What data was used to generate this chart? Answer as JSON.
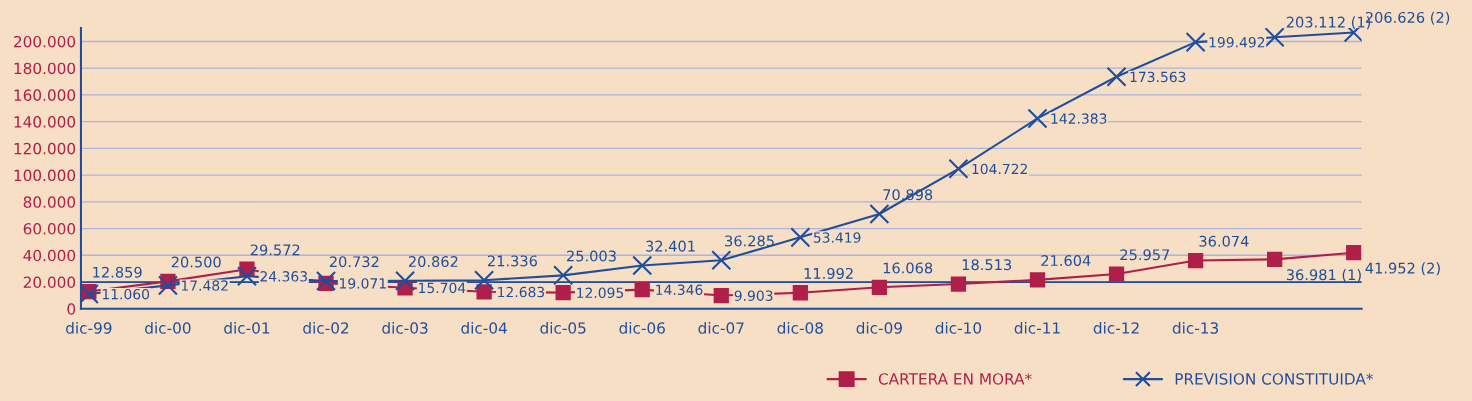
{
  "chart_data": {
    "type": "line",
    "categories": [
      "dic-99",
      "dic-00",
      "dic-01",
      "dic-02",
      "dic-03",
      "dic-04",
      "dic-05",
      "dic-06",
      "dic-07",
      "dic-08",
      "dic-09",
      "dic-10",
      "dic-11",
      "dic-12",
      "dic-13",
      null,
      null
    ],
    "ylim": [
      0,
      210000
    ],
    "yticks": [
      {
        "value": 0,
        "label": "0"
      },
      {
        "value": 20000,
        "label": "20.000"
      },
      {
        "value": 40000,
        "label": "40.000"
      },
      {
        "value": 60000,
        "label": "60.000"
      },
      {
        "value": 80000,
        "label": "80.000"
      },
      {
        "value": 100000,
        "label": "100.000"
      },
      {
        "value": 120000,
        "label": "120.000"
      },
      {
        "value": 140000,
        "label": "140.000"
      },
      {
        "value": 160000,
        "label": "160.000"
      },
      {
        "value": 180000,
        "label": "180.000"
      },
      {
        "value": 200000,
        "label": "200.000"
      }
    ],
    "grid": "y",
    "legend": "bottom right",
    "ref_lines": [
      {
        "axis": "y",
        "value": 20000,
        "color": "#1f4e9c"
      }
    ],
    "series": [
      {
        "name": "CARTERA EN MORA*",
        "color": "#b01f4a",
        "marker": "square",
        "values": [
          12859,
          20500,
          29572,
          19071,
          15704,
          12683,
          12095,
          14346,
          9903,
          11992,
          16068,
          18513,
          21604,
          25957,
          36074,
          36981,
          41952
        ],
        "value_labels": [
          "12.859",
          "20.500",
          "29.572",
          "19.071",
          "15.704",
          "12.683",
          "12.095",
          "14.346",
          "9.903",
          "11.992",
          "16.068",
          "18.513",
          "21.604",
          "25.957",
          "36.074",
          "36.981 (1)",
          "41.952 (2)"
        ]
      },
      {
        "name": "PREVISION CONSTITUIDA*",
        "color": "#1f4e9c",
        "marker": "cross",
        "values": [
          11060,
          17482,
          24363,
          20732,
          20862,
          21336,
          25003,
          32401,
          36285,
          53419,
          70898,
          104722,
          142383,
          173563,
          199492,
          203112,
          206626
        ],
        "value_labels": [
          "11.060",
          "17.482",
          "24.363",
          "20.732",
          "20.862",
          "21.336",
          "25.003",
          "32.401",
          "36.285",
          "53.419",
          "70.898",
          "104.722",
          "142.383",
          "173.563",
          "199.492",
          "203.112 (1)",
          "206.626 (2)"
        ]
      }
    ]
  }
}
